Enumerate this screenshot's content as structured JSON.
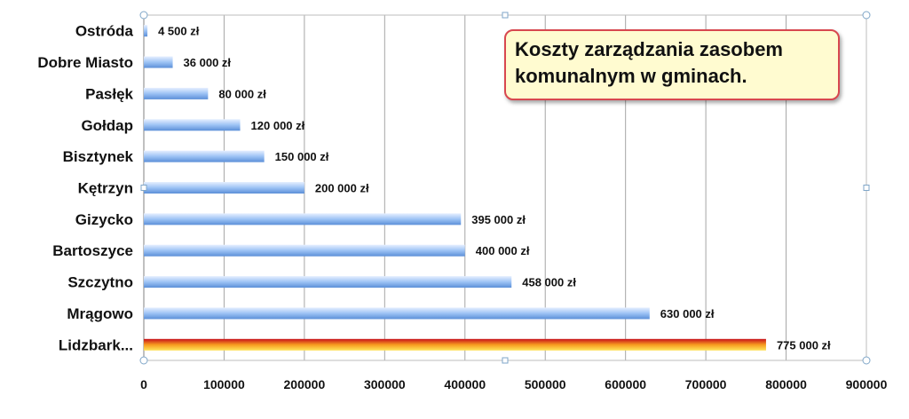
{
  "chart_data": {
    "type": "bar",
    "orientation": "horizontal",
    "title_lines": [
      "Koszty zarządzania zasobem",
      "komunalnym w gminach."
    ],
    "categories": [
      "Ostróda",
      "Dobre Miasto",
      "Pasłęk",
      "Gołdap",
      "Bisztynek",
      "Kętrzyn",
      "Gizycko",
      "Bartoszyce",
      "Szczytno",
      "Mrągowo",
      "Lidzbark..."
    ],
    "values": [
      4500,
      36000,
      80000,
      120000,
      150000,
      200000,
      395000,
      400000,
      458000,
      630000,
      775000
    ],
    "value_labels": [
      "4 500 zł",
      "36 000 zł",
      "80 000 zł",
      "120 000 zł",
      "150 000 zł",
      "200 000 zł",
      "395 000 zł",
      "400 000 zł",
      "458 000 zł",
      "630 000 zł",
      "775 000 zł"
    ],
    "xlim": [
      0,
      900000
    ],
    "xticks": [
      0,
      100000,
      200000,
      300000,
      400000,
      500000,
      600000,
      700000,
      800000,
      900000
    ],
    "xtick_labels": [
      "0",
      "100000",
      "200000",
      "300000",
      "400000",
      "500000",
      "600000",
      "700000",
      "800000",
      "900000"
    ],
    "grid": "vertical",
    "legend": "none",
    "colors": {
      "bar_light": "#e6efff",
      "bar_mid": "#9dc3f5",
      "bar_dark": "#5b8fd8",
      "highlight_top": "#c8121c",
      "highlight_mid": "#f79a1e",
      "highlight_bottom": "#ffe45a",
      "grid": "#a6a6a6",
      "title_bg": "#fffbd0",
      "title_border": "#d8474f"
    }
  }
}
